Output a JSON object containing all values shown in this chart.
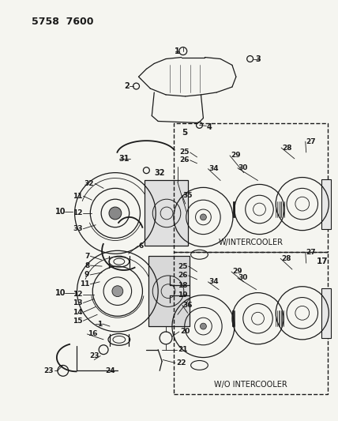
{
  "bg_color": "#f5f5f0",
  "fg_color": "#1a1a1a",
  "fig_width": 4.28,
  "fig_height": 5.33,
  "dpi": 100,
  "header": "5758  7600",
  "box1_label": "W/INTERCOOLER",
  "box2_label": "W/O INTERCOOLER",
  "box1_number": "5",
  "box2_number": "17"
}
